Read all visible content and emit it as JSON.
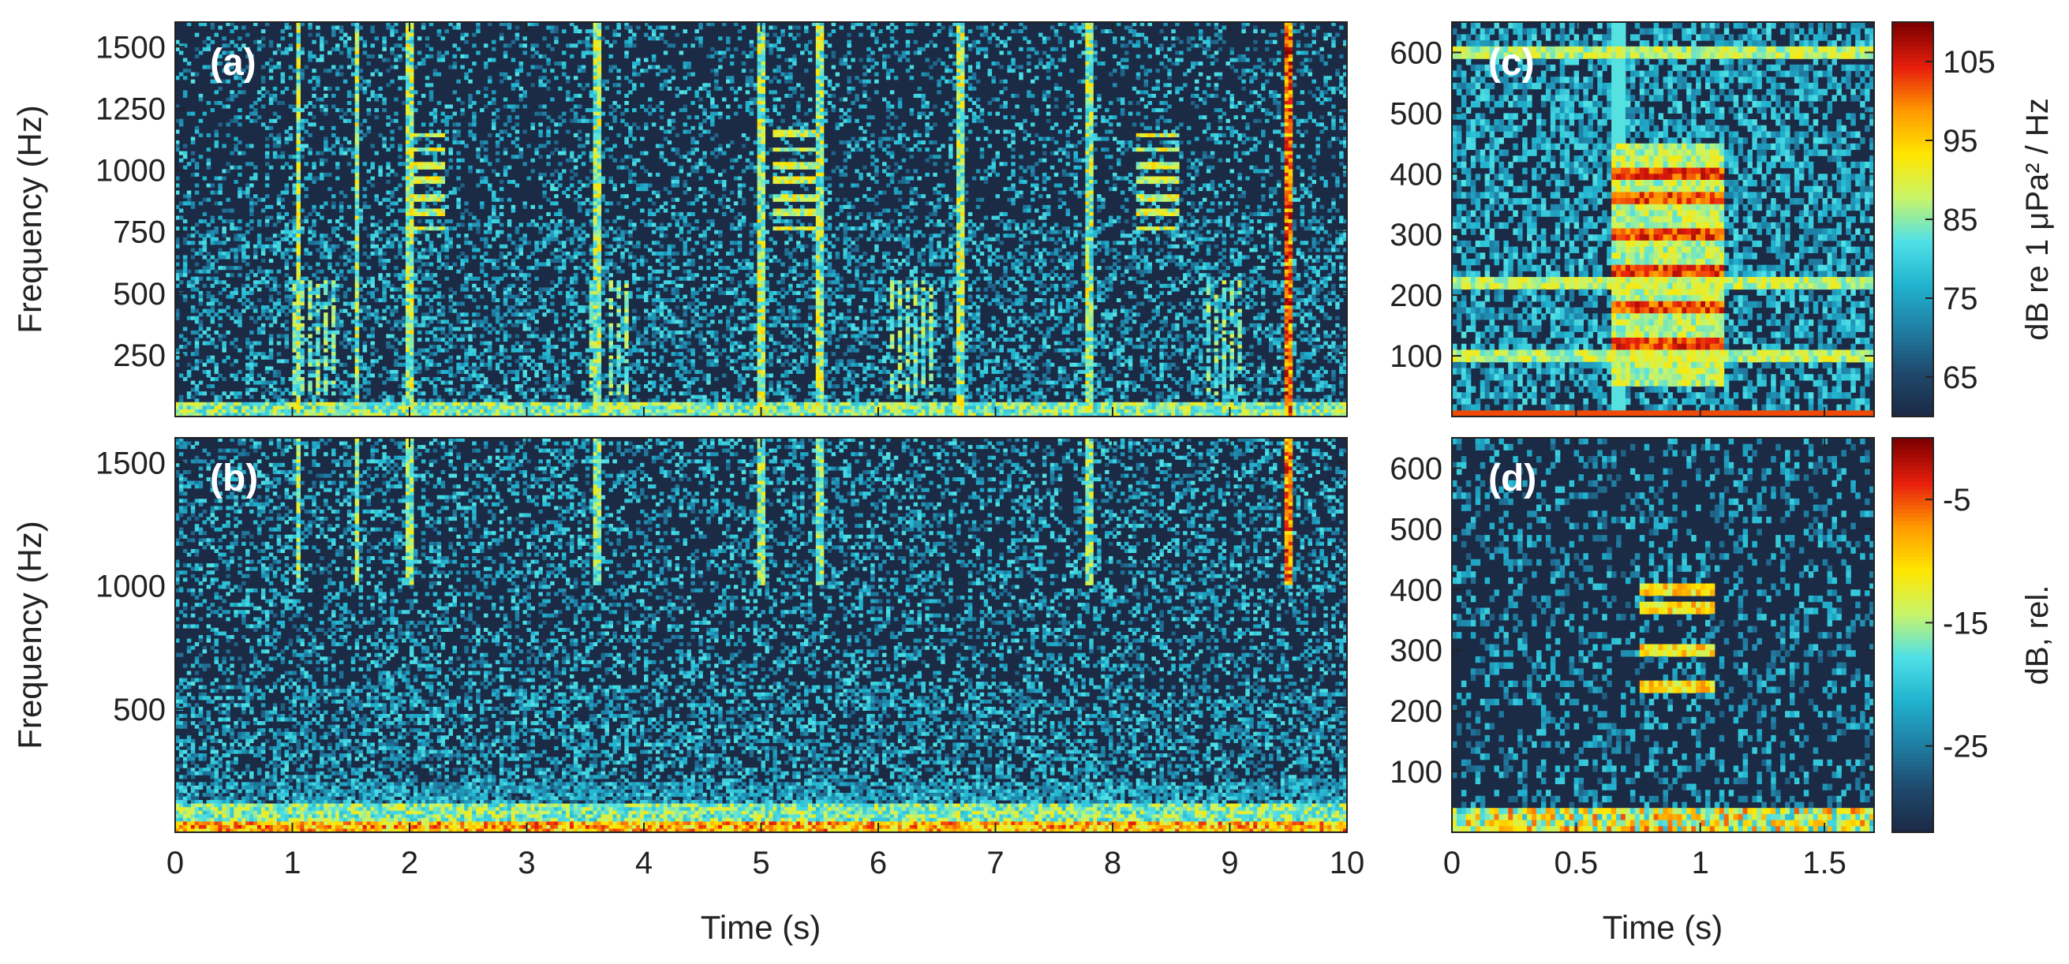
{
  "colors": {
    "background_dark": "#1b2a45",
    "colormap": [
      "#1b2a45",
      "#1f4a6e",
      "#1f7fa4",
      "#21b3cf",
      "#4fe0e6",
      "#c8f56a",
      "#ffe600",
      "#ff9a00",
      "#e81f0c",
      "#7f0000"
    ]
  },
  "chart_data": [
    {
      "id": "a",
      "type": "heatmap",
      "panel_label": "(a)",
      "ylabel": "Frequency (Hz)",
      "xlabel": "",
      "xlim": [
        0,
        10
      ],
      "ylim": [
        0,
        1600
      ],
      "yticks": [
        250,
        500,
        750,
        1000,
        1250,
        1500
      ],
      "ytick_labels": [
        "250",
        "500",
        "750",
        "1000",
        "1250",
        "1500"
      ],
      "xticks": [
        0,
        1,
        2,
        3,
        4,
        5,
        6,
        7,
        8,
        9,
        10
      ],
      "colorbar": "c",
      "vertical_clicks_s": [
        1.05,
        1.55,
        2.0,
        3.6,
        5.0,
        5.5,
        6.7,
        7.8,
        9.5
      ],
      "song_calls": [
        {
          "t_start": 2.0,
          "t_end": 2.3,
          "f_low": 750,
          "f_high": 1150
        },
        {
          "t_start": 5.1,
          "t_end": 5.45,
          "f_low": 750,
          "f_high": 1200
        },
        {
          "t_start": 8.2,
          "t_end": 8.55,
          "f_low": 750,
          "f_high": 1150
        }
      ],
      "low_band_pulses": [
        {
          "t_start": 1.0,
          "t_end": 1.35
        },
        {
          "t_start": 3.55,
          "t_end": 3.9
        },
        {
          "t_start": 6.1,
          "t_end": 6.5
        },
        {
          "t_start": 8.8,
          "t_end": 9.2
        }
      ]
    },
    {
      "id": "b",
      "type": "heatmap",
      "panel_label": "(b)",
      "ylabel": "Frequency (Hz)",
      "xlabel": "Time (s)",
      "xlim": [
        0,
        10
      ],
      "ylim": [
        0,
        1600
      ],
      "yticks": [
        500,
        1000,
        1500
      ],
      "ytick_labels": [
        "500",
        "1000",
        "1500"
      ],
      "xticks": [
        0,
        1,
        2,
        3,
        4,
        5,
        6,
        7,
        8,
        9,
        10
      ],
      "xtick_labels": [
        "0",
        "1",
        "2",
        "3",
        "4",
        "5",
        "6",
        "7",
        "8",
        "9",
        "10"
      ],
      "colorbar": "d",
      "vertical_clicks_s": [
        1.05,
        1.55,
        2.0,
        3.6,
        5.0,
        5.5,
        7.8,
        9.5
      ]
    },
    {
      "id": "c",
      "type": "heatmap",
      "panel_label": "(c)",
      "ylabel": "",
      "xlabel": "",
      "xlim": [
        0,
        1.7
      ],
      "ylim": [
        0,
        650
      ],
      "yticks": [
        100,
        200,
        300,
        400,
        500,
        600
      ],
      "ytick_labels": [
        "100",
        "200",
        "300",
        "400",
        "500",
        "600"
      ],
      "xticks": [
        0,
        0.5,
        1,
        1.5
      ],
      "colorbar_label": "dB re 1 μPa² / Hz",
      "colorbar_range": [
        60,
        110
      ],
      "colorbar_ticks": [
        65,
        75,
        85,
        95,
        105
      ],
      "colorbar_tick_labels": [
        "65",
        "75",
        "85",
        "95",
        "105"
      ],
      "call": {
        "t_start": 0.65,
        "t_end": 1.1,
        "f_low": 50,
        "f_high": 450
      },
      "harmonic_bands_hz": [
        120,
        180,
        240,
        300,
        360,
        400
      ],
      "persistent_lines_hz": [
        100,
        220,
        600
      ]
    },
    {
      "id": "d",
      "type": "heatmap",
      "panel_label": "(d)",
      "ylabel": "",
      "xlabel": "Time (s)",
      "xlim": [
        0,
        1.7
      ],
      "ylim": [
        0,
        650
      ],
      "yticks": [
        100,
        200,
        300,
        400,
        500,
        600
      ],
      "ytick_labels": [
        "100",
        "200",
        "300",
        "400",
        "500",
        "600"
      ],
      "xticks": [
        0,
        0.5,
        1,
        1.5
      ],
      "xtick_labels": [
        "0",
        "0.5",
        "1",
        "1.5"
      ],
      "colorbar_label": "dB, rel.",
      "colorbar_range": [
        -32,
        0
      ],
      "colorbar_ticks": [
        -25,
        -15,
        -5
      ],
      "colorbar_tick_labels": [
        "-25",
        "-15",
        "-5"
      ],
      "call": {
        "t_start": 0.75,
        "t_end": 1.05,
        "f_low": 220,
        "f_high": 420
      },
      "harmonic_bands_hz": [
        240,
        300,
        370,
        400
      ]
    }
  ],
  "labels": {
    "a": "(a)",
    "b": "(b)",
    "c": "(c)",
    "d": "(d)",
    "ylabel_a": "Frequency (Hz)",
    "ylabel_b": "Frequency (Hz)",
    "xlabel_b": "Time (s)",
    "xlabel_d": "Time (s)",
    "cbar_c": "dB re 1 μPa² / Hz",
    "cbar_d": "dB, rel."
  }
}
